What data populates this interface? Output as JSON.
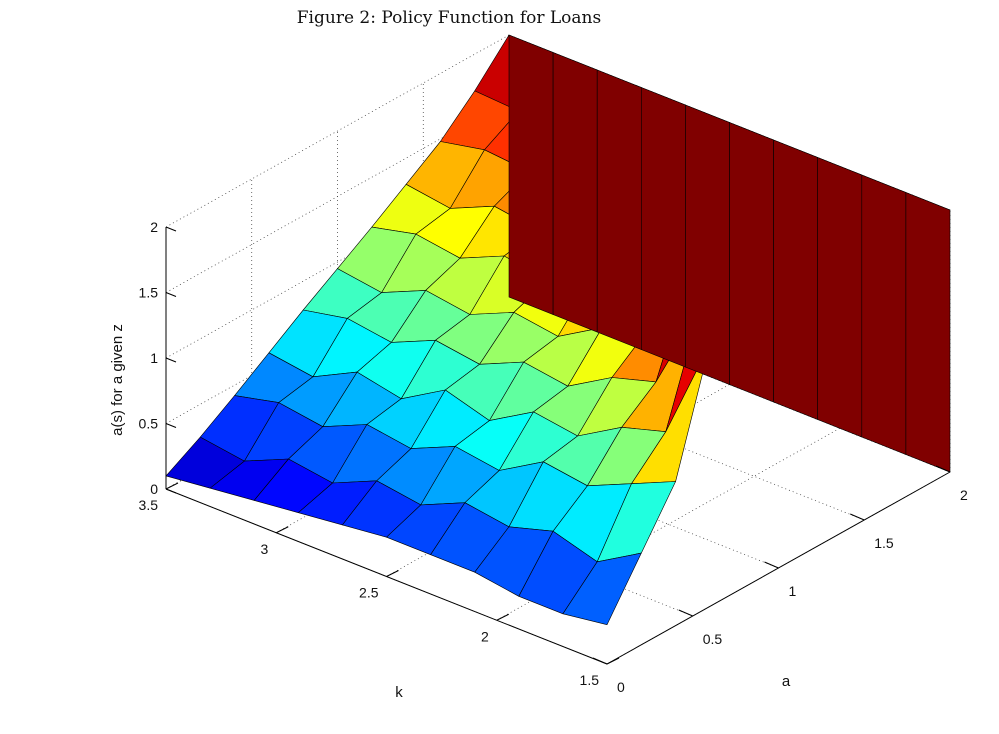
{
  "figure": {
    "caption": "Figure 2: Policy Function for Loans"
  },
  "chart_data": {
    "type": "surface",
    "zlabel": "a(s) for a given z",
    "xlabel": "k",
    "ylabel": "a",
    "k_axis": {
      "range": [
        1.5,
        3.5
      ],
      "ticks": [
        "3.5",
        "3",
        "2.5",
        "2",
        "1.5"
      ]
    },
    "a_axis": {
      "range": [
        0,
        2
      ],
      "ticks": [
        "0",
        "0.5",
        "1",
        "1.5",
        "2"
      ]
    },
    "z_axis": {
      "range": [
        0,
        2
      ],
      "ticks": [
        "0",
        "0.5",
        "1",
        "1.5",
        "2"
      ]
    },
    "grid": true,
    "colormap": "jet",
    "colormap_stops": [
      "#00008f",
      "#0000ff",
      "#00ffff",
      "#ffff00",
      "#ff0000",
      "#800000"
    ],
    "k_values": [
      3.5,
      3.3,
      3.1,
      2.9,
      2.7,
      2.5,
      2.3,
      2.1,
      1.9,
      1.7,
      1.5
    ],
    "a_values": [
      0,
      0.2,
      0.4,
      0.6,
      0.8,
      1.0,
      1.2,
      1.4,
      1.6,
      1.8,
      2.0
    ],
    "z_values": [
      [
        0.1,
        0.25,
        0.42,
        0.6,
        0.78,
        0.95,
        1.12,
        1.3,
        1.48,
        1.72,
        2.0
      ],
      [
        0.14,
        0.2,
        0.5,
        0.55,
        0.85,
        0.9,
        1.2,
        1.25,
        1.55,
        1.7,
        2.0
      ],
      [
        0.18,
        0.35,
        0.45,
        0.72,
        0.8,
        1.05,
        1.15,
        1.4,
        1.52,
        1.85,
        2.0
      ],
      [
        0.22,
        0.3,
        0.6,
        0.65,
        0.95,
        1.0,
        1.3,
        1.35,
        1.65,
        2.0,
        2.0
      ],
      [
        0.26,
        0.45,
        0.55,
        0.85,
        0.9,
        1.15,
        1.25,
        1.5,
        1.8,
        2.0,
        2.0
      ],
      [
        0.3,
        0.4,
        0.7,
        0.75,
        1.05,
        1.1,
        1.4,
        1.6,
        2.0,
        2.0,
        2.0
      ],
      [
        0.3,
        0.55,
        0.65,
        0.95,
        1.0,
        1.3,
        1.5,
        2.0,
        2.0,
        2.0,
        2.0
      ],
      [
        0.3,
        0.5,
        0.85,
        0.9,
        1.2,
        1.4,
        2.0,
        2.0,
        2.0,
        2.0,
        2.0
      ],
      [
        0.25,
        0.6,
        0.8,
        1.1,
        1.3,
        2.0,
        2.0,
        2.0,
        2.0,
        2.0,
        2.0
      ],
      [
        0.25,
        0.5,
        0.95,
        1.2,
        2.0,
        2.0,
        2.0,
        2.0,
        2.0,
        2.0,
        2.0
      ],
      [
        0.3,
        0.7,
        1.1,
        2.0,
        2.0,
        2.0,
        2.0,
        2.0,
        2.0,
        2.0,
        2.0
      ]
    ]
  }
}
